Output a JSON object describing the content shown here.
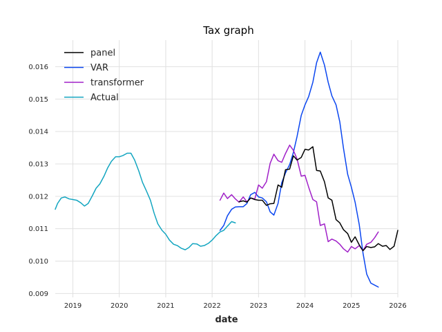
{
  "chart_data": {
    "type": "line",
    "title": "Tax graph",
    "xlabel": "date",
    "ylabel": "",
    "xlim": [
      2018.62,
      2026.0
    ],
    "ylim": [
      0.00888,
      0.01682
    ],
    "x_ticks": [
      2019,
      2020,
      2021,
      2022,
      2023,
      2024,
      2025,
      2026
    ],
    "x_tick_labels": [
      "2019",
      "2020",
      "2021",
      "2022",
      "2023",
      "2024",
      "2025",
      "2026"
    ],
    "y_ticks": [
      0.009,
      0.01,
      0.011,
      0.012,
      0.013,
      0.014,
      0.015,
      0.016
    ],
    "y_tick_labels": [
      "0.009",
      "0.010",
      "0.011",
      "0.012",
      "0.013",
      "0.014",
      "0.015",
      "0.016"
    ],
    "grid": true,
    "legend": "top-left",
    "series": [
      {
        "name": "panel",
        "color": "#000000",
        "x": [
          2022.58,
          2022.67,
          2022.75,
          2022.83,
          2022.92,
          2023.0,
          2023.08,
          2023.17,
          2023.25,
          2023.33,
          2023.42,
          2023.5,
          2023.58,
          2023.67,
          2023.75,
          2023.83,
          2023.92,
          2024.0,
          2024.08,
          2024.17,
          2024.25,
          2024.33,
          2024.42,
          2024.5,
          2024.58,
          2024.67,
          2024.75,
          2024.83,
          2024.92,
          2025.0,
          2025.08,
          2025.17,
          2025.25,
          2025.33,
          2025.42,
          2025.5,
          2025.58,
          2025.67,
          2025.75,
          2025.83,
          2025.92,
          2026.0
        ],
        "y": [
          0.01183,
          0.01186,
          0.01182,
          0.01195,
          0.0119,
          0.01188,
          0.01188,
          0.01172,
          0.01177,
          0.01178,
          0.01235,
          0.01228,
          0.01282,
          0.01284,
          0.01325,
          0.01312,
          0.0132,
          0.01345,
          0.01343,
          0.01353,
          0.0128,
          0.01278,
          0.01245,
          0.01195,
          0.01188,
          0.01128,
          0.01118,
          0.01097,
          0.01085,
          0.01058,
          0.01075,
          0.0105,
          0.01032,
          0.01045,
          0.01042,
          0.01044,
          0.01054,
          0.01046,
          0.01048,
          0.01036,
          0.01046,
          0.01095
        ]
      },
      {
        "name": "VAR",
        "color": "#0a46f0",
        "x": [
          2022.17,
          2022.25,
          2022.33,
          2022.42,
          2022.5,
          2022.58,
          2022.67,
          2022.75,
          2022.83,
          2022.92,
          2023.0,
          2023.08,
          2023.17,
          2023.25,
          2023.33,
          2023.42,
          2023.5,
          2023.58,
          2023.67,
          2023.75,
          2023.83,
          2023.92,
          2024.0,
          2024.08,
          2024.17,
          2024.25,
          2024.33,
          2024.42,
          2024.5,
          2024.58,
          2024.67,
          2024.75,
          2024.83,
          2024.92,
          2025.0,
          2025.08,
          2025.17,
          2025.25,
          2025.33,
          2025.42,
          2025.5,
          2025.58
        ],
        "y": [
          0.01095,
          0.0111,
          0.0114,
          0.0116,
          0.01167,
          0.01168,
          0.01168,
          0.01178,
          0.01205,
          0.01212,
          0.01198,
          0.01195,
          0.01183,
          0.01152,
          0.01142,
          0.01178,
          0.01242,
          0.01272,
          0.01298,
          0.01335,
          0.01385,
          0.0145,
          0.01482,
          0.01508,
          0.01552,
          0.01612,
          0.01645,
          0.01605,
          0.01552,
          0.0151,
          0.01482,
          0.0143,
          0.01348,
          0.01268,
          0.01228,
          0.01182,
          0.01112,
          0.01025,
          0.0096,
          0.00932,
          0.00926,
          0.0092
        ]
      },
      {
        "name": "transformer",
        "color": "#a020c8",
        "x": [
          2022.17,
          2022.25,
          2022.33,
          2022.42,
          2022.5,
          2022.58,
          2022.67,
          2022.75,
          2022.83,
          2022.92,
          2023.0,
          2023.08,
          2023.17,
          2023.25,
          2023.33,
          2023.42,
          2023.5,
          2023.58,
          2023.67,
          2023.75,
          2023.83,
          2023.92,
          2024.0,
          2024.08,
          2024.17,
          2024.25,
          2024.33,
          2024.42,
          2024.5,
          2024.58,
          2024.67,
          2024.75,
          2024.83,
          2024.92,
          2025.0,
          2025.08,
          2025.17,
          2025.25,
          2025.33,
          2025.42,
          2025.5,
          2025.58
        ],
        "y": [
          0.01188,
          0.0121,
          0.01193,
          0.01205,
          0.01192,
          0.01182,
          0.01198,
          0.01183,
          0.01195,
          0.01192,
          0.01235,
          0.01225,
          0.01245,
          0.01302,
          0.0133,
          0.0131,
          0.01305,
          0.01332,
          0.01358,
          0.01342,
          0.01315,
          0.01262,
          0.01265,
          0.01228,
          0.0119,
          0.01183,
          0.0111,
          0.01115,
          0.0106,
          0.01068,
          0.01062,
          0.01052,
          0.01038,
          0.01028,
          0.01045,
          0.01038,
          0.01048,
          0.01032,
          0.01052,
          0.01058,
          0.01072,
          0.0109
        ]
      },
      {
        "name": "Actual",
        "color": "#12a5c0",
        "x": [
          2018.62,
          2018.67,
          2018.75,
          2018.83,
          2018.92,
          2019.0,
          2019.08,
          2019.17,
          2019.25,
          2019.33,
          2019.42,
          2019.5,
          2019.58,
          2019.67,
          2019.75,
          2019.83,
          2019.92,
          2020.0,
          2020.08,
          2020.17,
          2020.25,
          2020.33,
          2020.42,
          2020.5,
          2020.58,
          2020.67,
          2020.75,
          2020.83,
          2020.92,
          2021.0,
          2021.08,
          2021.17,
          2021.25,
          2021.33,
          2021.42,
          2021.5,
          2021.58,
          2021.67,
          2021.75,
          2021.83,
          2021.92,
          2022.0,
          2022.08,
          2022.17,
          2022.25,
          2022.33,
          2022.42,
          2022.5
        ],
        "y": [
          0.0116,
          0.01178,
          0.01195,
          0.01198,
          0.01192,
          0.0119,
          0.01188,
          0.0118,
          0.0117,
          0.01178,
          0.01202,
          0.01225,
          0.01238,
          0.01262,
          0.01288,
          0.01308,
          0.01322,
          0.01322,
          0.01326,
          0.01333,
          0.01333,
          0.01312,
          0.01278,
          0.01243,
          0.01218,
          0.01188,
          0.01148,
          0.01115,
          0.01095,
          0.01083,
          0.01065,
          0.01052,
          0.01048,
          0.0104,
          0.01035,
          0.01042,
          0.01054,
          0.01053,
          0.01046,
          0.01048,
          0.01055,
          0.01065,
          0.01078,
          0.0109,
          0.01095,
          0.01108,
          0.01122,
          0.01118
        ]
      }
    ]
  }
}
